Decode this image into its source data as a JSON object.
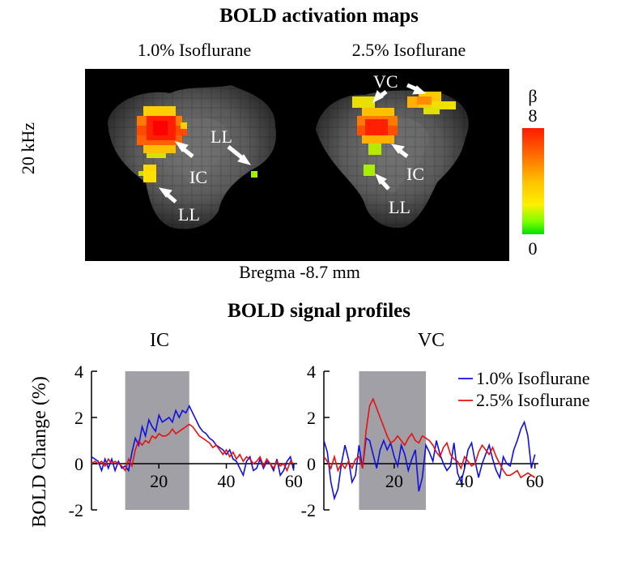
{
  "figure": {
    "title_maps": "BOLD activation maps",
    "title_profiles": "BOLD signal profiles",
    "panel_left_label": "1.0% Isoflurane",
    "panel_right_label": "2.5% Isoflurane",
    "row_label": "20 kHz",
    "bregma_label": "Bregma -8.7 mm",
    "colorbar": {
      "symbol": "β",
      "max_label": "8",
      "min_label": "0"
    },
    "annotations": {
      "left": [
        "LL",
        "IC",
        "LL"
      ],
      "right": [
        "VC",
        "IC",
        "LL"
      ]
    }
  },
  "colors": {
    "series_1": "#1010e0",
    "series_2": "#e81010",
    "stim_block": "#a0a0a6"
  },
  "chart_data": [
    {
      "type": "line",
      "title": "IC",
      "xlabel": "",
      "ylabel": "BOLD Change (%)",
      "xlim": [
        0,
        61
      ],
      "ylim": [
        -2,
        4
      ],
      "xticks": [
        20,
        40,
        60
      ],
      "yticks": [
        -2,
        0,
        2,
        4
      ],
      "stim_block": [
        10,
        29
      ],
      "x": [
        0,
        1,
        2,
        3,
        4,
        5,
        6,
        7,
        8,
        9,
        10,
        11,
        12,
        13,
        14,
        15,
        16,
        17,
        18,
        19,
        20,
        21,
        22,
        23,
        24,
        25,
        26,
        27,
        28,
        29,
        30,
        31,
        32,
        33,
        34,
        35,
        36,
        37,
        38,
        39,
        40,
        41,
        42,
        43,
        44,
        45,
        46,
        47,
        48,
        49,
        50,
        51,
        52,
        53,
        54,
        55,
        56,
        57,
        58,
        59,
        60
      ],
      "series": [
        {
          "name": "1.0% Isoflurane",
          "values": [
            0.3,
            0.2,
            0.1,
            -0.3,
            0.2,
            -0.2,
            0.2,
            -0.3,
            0.1,
            -0.2,
            -0.1,
            -0.3,
            0.5,
            1.1,
            0.8,
            1.6,
            1.2,
            1.9,
            1.6,
            1.4,
            2.1,
            1.8,
            1.9,
            2.0,
            1.8,
            2.3,
            2.0,
            2.3,
            2.2,
            2.5,
            2.2,
            1.9,
            1.6,
            1.4,
            1.3,
            1.1,
            1.0,
            0.8,
            0.7,
            0.6,
            0.4,
            0.6,
            0.2,
            0.1,
            -0.2,
            -0.5,
            0.1,
            0.3,
            -0.3,
            -0.2,
            0.2,
            -0.2,
            0.1,
            0.0,
            -0.3,
            0.2,
            -0.5,
            -0.3,
            0.1,
            0.3,
            -0.3
          ]
        },
        {
          "name": "2.5% Isoflurane",
          "values": [
            0.0,
            0.1,
            0.0,
            0.1,
            -0.1,
            0.2,
            0.0,
            0.1,
            0.0,
            -0.1,
            -0.3,
            0.2,
            -0.1,
            0.6,
            1.0,
            0.8,
            1.0,
            0.9,
            1.2,
            1.1,
            1.3,
            1.2,
            1.2,
            1.3,
            1.5,
            1.3,
            1.4,
            1.5,
            1.6,
            1.7,
            1.6,
            1.4,
            1.2,
            1.1,
            1.0,
            0.9,
            0.7,
            0.8,
            0.6,
            0.4,
            0.6,
            0.3,
            0.5,
            0.2,
            0.4,
            0.1,
            0.3,
            0.2,
            0.0,
            0.1,
            0.3,
            -0.1,
            0.2,
            0.0,
            -0.2,
            0.1,
            -0.1,
            0.0,
            -0.3,
            0.1,
            0.0
          ]
        }
      ]
    },
    {
      "type": "line",
      "title": "VC",
      "xlabel": "",
      "ylabel": "",
      "xlim": [
        0,
        61
      ],
      "ylim": [
        -2,
        4
      ],
      "xticks": [
        20,
        40,
        60
      ],
      "yticks": [
        -2,
        0,
        2,
        4
      ],
      "stim_block": [
        10,
        29
      ],
      "legend": "top-right",
      "x": [
        0,
        1,
        2,
        3,
        4,
        5,
        6,
        7,
        8,
        9,
        10,
        11,
        12,
        13,
        14,
        15,
        16,
        17,
        18,
        19,
        20,
        21,
        22,
        23,
        24,
        25,
        26,
        27,
        28,
        29,
        30,
        31,
        32,
        33,
        34,
        35,
        36,
        37,
        38,
        39,
        40,
        41,
        42,
        43,
        44,
        45,
        46,
        47,
        48,
        49,
        50,
        51,
        52,
        53,
        54,
        55,
        56,
        57,
        58,
        59,
        60
      ],
      "series": [
        {
          "name": "1.0% Isoflurane",
          "values": [
            1.0,
            0.5,
            -0.8,
            -1.5,
            -1.1,
            0.0,
            0.8,
            0.2,
            -0.8,
            -0.5,
            0.8,
            -0.2,
            1.1,
            1.0,
            0.4,
            -0.2,
            0.6,
            1.0,
            0.6,
            0.9,
            0.3,
            -0.1,
            0.8,
            0.4,
            -0.3,
            0.2,
            0.6,
            -1.2,
            -0.6,
            0.8,
            0.5,
            0.1,
            1.0,
            0.4,
            0.0,
            -0.3,
            -0.1,
            0.9,
            -0.4,
            -0.8,
            -0.2,
            0.6,
            0.9,
            0.1,
            -0.6,
            0.0,
            0.4,
            0.8,
            0.2,
            -0.3,
            -0.6,
            0.3,
            0.0,
            -0.1,
            0.6,
            1.0,
            1.5,
            1.8,
            1.2,
            -0.2,
            0.4
          ]
        },
        {
          "name": "2.5% Isoflurane",
          "values": [
            0.3,
            0.1,
            -0.2,
            0.3,
            -0.3,
            0.0,
            -0.2,
            0.1,
            -0.2,
            0.2,
            0.3,
            -0.2,
            1.4,
            2.5,
            2.8,
            2.4,
            2.0,
            1.6,
            1.2,
            0.9,
            1.0,
            1.2,
            1.0,
            0.8,
            1.1,
            1.3,
            1.0,
            0.9,
            1.2,
            1.1,
            1.0,
            0.8,
            0.5,
            0.3,
            0.7,
            0.9,
            0.4,
            0.2,
            0.1,
            -0.2,
            0.3,
            0.1,
            -0.1,
            0.0,
            0.5,
            0.8,
            0.6,
            0.4,
            0.7,
            0.3,
            0.0,
            -0.3,
            -0.5,
            -0.5,
            -0.4,
            -0.3,
            -0.6,
            -0.5,
            -0.4,
            -0.5,
            -0.6
          ]
        }
      ]
    }
  ]
}
